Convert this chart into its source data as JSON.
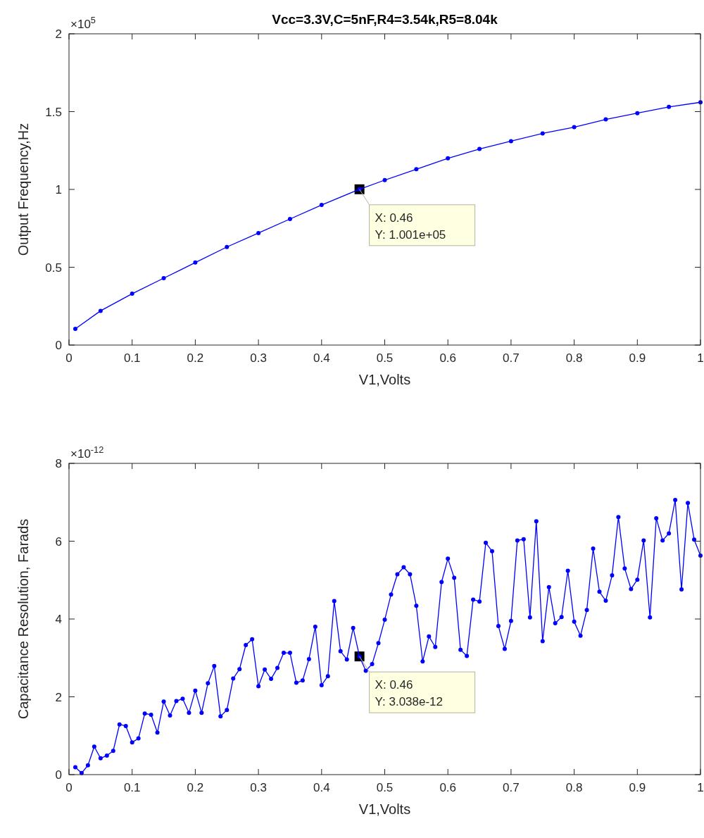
{
  "chart_data": [
    {
      "type": "line",
      "title": "Vcc=3.3V,C=5nF,R4=3.54k,R5=8.04k",
      "xlabel": "V1,Volts",
      "ylabel": "Output Frequency,Hz",
      "x": [
        0.01,
        0.05,
        0.1,
        0.15,
        0.2,
        0.25,
        0.3,
        0.35,
        0.4,
        0.46,
        0.5,
        0.55,
        0.6,
        0.65,
        0.7,
        0.75,
        0.8,
        0.85,
        0.9,
        0.95,
        1.0
      ],
      "series": [
        {
          "color": "#0000ff",
          "values": [
            0.104,
            0.22,
            0.33,
            0.43,
            0.53,
            0.63,
            0.72,
            0.81,
            0.9,
            1.001,
            1.06,
            1.13,
            1.2,
            1.26,
            1.31,
            1.36,
            1.4,
            1.45,
            1.49,
            1.53,
            1.56
          ]
        }
      ],
      "xlim": [
        0,
        1
      ],
      "xticks": [
        0,
        0.1,
        0.2,
        0.3,
        0.4,
        0.5,
        0.6,
        0.7,
        0.8,
        0.9,
        1
      ],
      "ylim": [
        0,
        2
      ],
      "yticks": [
        0,
        0.5,
        1,
        1.5,
        2
      ],
      "annotations": [
        "×10$^{5}$",
        {
          "text": "X: 0.46\nY: 1.001e+05",
          "x": 0.46,
          "y": 1.001
        }
      ],
      "marker": "circle",
      "line_style": "solid"
    },
    {
      "type": "line",
      "xlabel": "V1,Volts",
      "ylabel": "Capacitance Resolution, Farads",
      "x": [
        0.01,
        0.02,
        0.03,
        0.04,
        0.05,
        0.06,
        0.07,
        0.08,
        0.09,
        0.1,
        0.11,
        0.12,
        0.13,
        0.14,
        0.15,
        0.16,
        0.17,
        0.18,
        0.19,
        0.2,
        0.21,
        0.22,
        0.23,
        0.24,
        0.25,
        0.26,
        0.27,
        0.28,
        0.29,
        0.3,
        0.31,
        0.32,
        0.33,
        0.34,
        0.35,
        0.36,
        0.37,
        0.38,
        0.39,
        0.4,
        0.41,
        0.42,
        0.43,
        0.44,
        0.45,
        0.46,
        0.47,
        0.48,
        0.49,
        0.5,
        0.51,
        0.52,
        0.53,
        0.54,
        0.55,
        0.56,
        0.57,
        0.58,
        0.59,
        0.6,
        0.61,
        0.62,
        0.63,
        0.64,
        0.65,
        0.66,
        0.67,
        0.68,
        0.69,
        0.7,
        0.71,
        0.72,
        0.73,
        0.74,
        0.75,
        0.76,
        0.77,
        0.78,
        0.79,
        0.8,
        0.81,
        0.82,
        0.83,
        0.84,
        0.85,
        0.86,
        0.87,
        0.88,
        0.89,
        0.9,
        0.91,
        0.92,
        0.93,
        0.94,
        0.95,
        0.96,
        0.97,
        0.98,
        0.99,
        1.0
      ],
      "series": [
        {
          "color": "#0000ff",
          "values": [
            0.19,
            0.04,
            0.24,
            0.72,
            0.42,
            0.49,
            0.61,
            1.29,
            1.25,
            0.83,
            0.93,
            1.57,
            1.54,
            1.08,
            1.88,
            1.52,
            1.89,
            1.95,
            1.59,
            2.16,
            1.59,
            2.35,
            2.79,
            1.5,
            1.66,
            2.47,
            2.71,
            3.33,
            3.48,
            2.27,
            2.7,
            2.46,
            2.74,
            3.13,
            3.13,
            2.36,
            2.42,
            2.97,
            3.8,
            2.3,
            2.53,
            4.46,
            3.17,
            2.96,
            3.77,
            3.038,
            2.67,
            2.84,
            3.38,
            3.98,
            4.63,
            5.15,
            5.33,
            5.15,
            4.34,
            2.91,
            3.55,
            3.28,
            4.95,
            5.55,
            5.06,
            3.21,
            3.05,
            4.5,
            4.45,
            5.96,
            5.74,
            3.82,
            3.23,
            3.95,
            6.02,
            6.05,
            4.04,
            6.51,
            3.43,
            4.82,
            3.89,
            4.05,
            5.24,
            3.93,
            3.57,
            4.23,
            5.81,
            4.7,
            4.47,
            5.12,
            6.62,
            5.3,
            4.77,
            5.01,
            6.02,
            4.04,
            6.59,
            6.02,
            6.2,
            7.06,
            4.76,
            6.98,
            6.04,
            5.63
          ]
        }
      ],
      "xlim": [
        0,
        1
      ],
      "xticks": [
        0,
        0.1,
        0.2,
        0.3,
        0.4,
        0.5,
        0.6,
        0.7,
        0.8,
        0.9,
        1
      ],
      "ylim": [
        0,
        8
      ],
      "yticks": [
        0,
        2,
        4,
        6,
        8
      ],
      "annotations": [
        "×10$^{-12}$",
        {
          "text": "X: 0.46\nY: 3.038e-12",
          "x": 0.46,
          "y": 3.038
        }
      ],
      "marker": "circle",
      "line_style": "solid"
    }
  ]
}
